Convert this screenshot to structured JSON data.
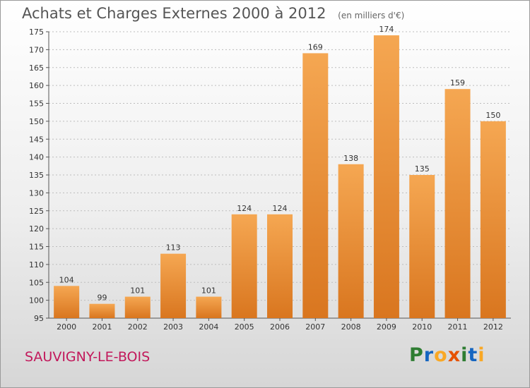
{
  "header": {
    "title": "Achats et Charges Externes 2000 à 2012",
    "subtitle": "(en milliers d'€)"
  },
  "footer": {
    "commune": "SAUVIGNY-LE-BOIS",
    "logo_letters": [
      {
        "char": "P",
        "color": "#2e7d32"
      },
      {
        "char": "r",
        "color": "#1565c0"
      },
      {
        "char": "o",
        "color": "#f9a825"
      },
      {
        "char": "x",
        "color": "#e65100"
      },
      {
        "char": "i",
        "color": "#2e7d32"
      },
      {
        "char": "t",
        "color": "#1565c0"
      },
      {
        "char": "i",
        "color": "#f9a825"
      }
    ]
  },
  "colors": {
    "bar_top": "#f5a752",
    "bar_bottom": "#d9761f",
    "grid": "#bdbdbd",
    "axis": "#555555"
  },
  "chart_data": {
    "type": "bar",
    "title": "Achats et Charges Externes 2000 à 2012",
    "subtitle": "(en milliers d'€)",
    "categories": [
      "2000",
      "2001",
      "2002",
      "2003",
      "2004",
      "2005",
      "2006",
      "2007",
      "2008",
      "2009",
      "2010",
      "2011",
      "2012"
    ],
    "values": [
      104,
      99,
      101,
      113,
      101,
      124,
      124,
      169,
      138,
      174,
      135,
      159,
      150
    ],
    "ylim": [
      95,
      175
    ],
    "yticks": [
      95,
      100,
      105,
      110,
      115,
      120,
      125,
      130,
      135,
      140,
      145,
      150,
      155,
      160,
      165,
      170,
      175
    ],
    "grid": true,
    "xlabel": "",
    "ylabel": ""
  }
}
